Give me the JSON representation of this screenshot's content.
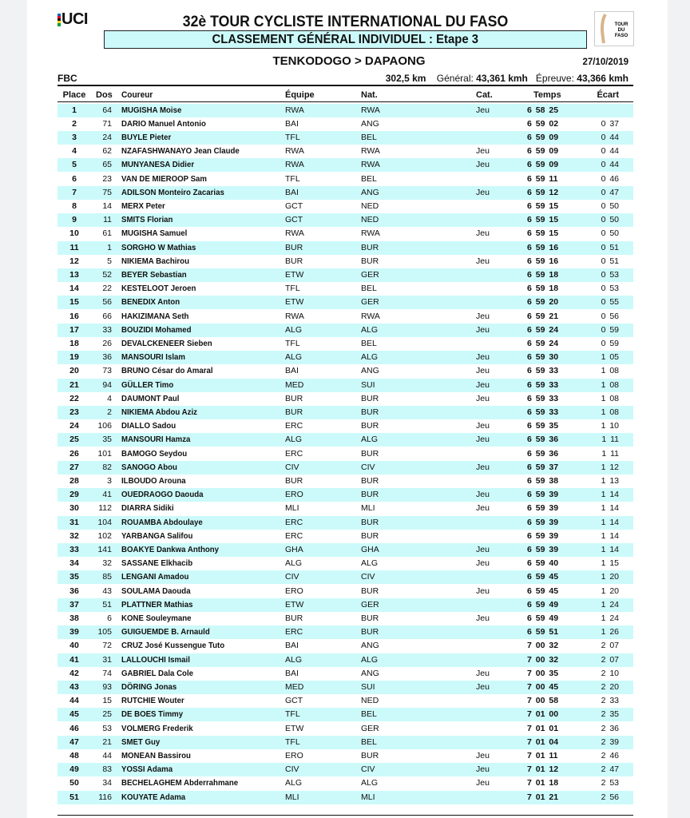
{
  "header": {
    "logo_text": "UCI",
    "title": "32è TOUR CYCLISTE INTERNATIONAL DU FASO",
    "subtitle": "CLASSEMENT GÉNÉRAL INDIVIDUEL  : Etape 3",
    "event_logo_text": "TOUR DU FASO",
    "stage": "TENKODOGO > DAPAONG",
    "date": "27/10/2019",
    "org": "FBC",
    "distance": "302,5 km",
    "general_label": "Général:",
    "general_speed": "43,361 kmh",
    "epreuve_label": "Épreuve:",
    "epreuve_speed": "43,366 kmh",
    "accent_color": "#ccfafa"
  },
  "columns": {
    "place": "Place",
    "dos": "Dos",
    "rider": "Coureur",
    "team": "Équipe",
    "nat": "Nat.",
    "cat": "Cat.",
    "time": "Temps",
    "gap": "Écart"
  },
  "rows": [
    [
      "1",
      "64",
      "MUGISHA  Moise",
      "RWA",
      "RWA",
      "Jeu",
      "6 58 25",
      ""
    ],
    [
      "2",
      "71",
      "DARIO Manuel Antonio",
      "BAI",
      "ANG",
      "",
      "6 59 02",
      "0 37"
    ],
    [
      "3",
      "24",
      "BUYLE Pieter",
      "TFL",
      "BEL",
      "",
      "6 59 09",
      "0 44"
    ],
    [
      "4",
      "62",
      "NZAFASHWANAYO Jean Claude",
      "RWA",
      "RWA",
      "Jeu",
      "6 59 09",
      "0 44"
    ],
    [
      "5",
      "65",
      "MUNYANESA  Didier",
      "RWA",
      "RWA",
      "Jeu",
      "6 59 09",
      "0 44"
    ],
    [
      "6",
      "23",
      "VAN DE MIEROOP Sam",
      "TFL",
      "BEL",
      "",
      "6 59 11",
      "0 46"
    ],
    [
      "7",
      "75",
      "ADILSON Monteiro Zacarias",
      "BAI",
      "ANG",
      "Jeu",
      "6 59 12",
      "0 47"
    ],
    [
      "8",
      "14",
      "MERX Peter",
      "GCT",
      "NED",
      "",
      "6 59 15",
      "0 50"
    ],
    [
      "9",
      "11",
      "SMITS Florian",
      "GCT",
      "NED",
      "",
      "6 59 15",
      "0 50"
    ],
    [
      "10",
      "61",
      "MUGISHA  Samuel",
      "RWA",
      "RWA",
      "Jeu",
      "6 59 15",
      "0 50"
    ],
    [
      "11",
      "1",
      "SORGHO  W Mathias",
      "BUR",
      "BUR",
      "",
      "6 59 16",
      "0 51"
    ],
    [
      "12",
      "5",
      "NIKIEMA  Bachirou",
      "BUR",
      "BUR",
      "Jeu",
      "6 59 16",
      "0 51"
    ],
    [
      "13",
      "52",
      "BEYER Sebastian",
      "ETW",
      "GER",
      "",
      "6 59 18",
      "0 53"
    ],
    [
      "14",
      "22",
      "KESTELOOT Jeroen",
      "TFL",
      "BEL",
      "",
      "6 59 18",
      "0 53"
    ],
    [
      "15",
      "56",
      "BENEDIX Anton",
      "ETW",
      "GER",
      "",
      "6 59 20",
      "0 55"
    ],
    [
      "16",
      "66",
      "HAKIZIMANA  Seth",
      "RWA",
      "RWA",
      "Jeu",
      "6 59 21",
      "0 56"
    ],
    [
      "17",
      "33",
      "BOUZIDI Mohamed",
      "ALG",
      "ALG",
      "Jeu",
      "6 59 24",
      "0 59"
    ],
    [
      "18",
      "26",
      "DEVALCKENEER Sieben",
      "TFL",
      "BEL",
      "",
      "6 59 24",
      "0 59"
    ],
    [
      "19",
      "36",
      "MANSOURI  Islam",
      "ALG",
      "ALG",
      "Jeu",
      "6 59 30",
      "1 05"
    ],
    [
      "20",
      "73",
      "BRUNO César do Amaral",
      "BAI",
      "ANG",
      "Jeu",
      "6 59 33",
      "1 08"
    ],
    [
      "21",
      "94",
      "GÜLLER  Timo",
      "MED",
      "SUI",
      "Jeu",
      "6 59 33",
      "1 08"
    ],
    [
      "22",
      "4",
      "DAUMONT  Paul",
      "BUR",
      "BUR",
      "Jeu",
      "6 59 33",
      "1 08"
    ],
    [
      "23",
      "2",
      "NIKIEMA Abdou Aziz",
      "BUR",
      "BUR",
      "",
      "6 59 33",
      "1 08"
    ],
    [
      "24",
      "106",
      "DIALLO Sadou",
      "ERC",
      "BUR",
      "Jeu",
      "6 59 35",
      "1 10"
    ],
    [
      "25",
      "35",
      "MANSOURI Hamza",
      "ALG",
      "ALG",
      "Jeu",
      "6 59 36",
      "1 11"
    ],
    [
      "26",
      "101",
      "BAMOGO Seydou",
      "ERC",
      "BUR",
      "",
      "6 59 36",
      "1 11"
    ],
    [
      "27",
      "82",
      "SANOGO Abou",
      "CIV",
      "CIV",
      "Jeu",
      "6 59 37",
      "1 12"
    ],
    [
      "28",
      "3",
      "ILBOUDO Arouna",
      "BUR",
      "BUR",
      "",
      "6 59 38",
      "1 13"
    ],
    [
      "29",
      "41",
      "OUEDRAOGO Daouda",
      "ERO",
      "BUR",
      "Jeu",
      "6 59 39",
      "1 14"
    ],
    [
      "30",
      "112",
      "DIARRA Sidiki",
      "MLI",
      "MLI",
      "Jeu",
      "6 59 39",
      "1 14"
    ],
    [
      "31",
      "104",
      "ROUAMBA Abdoulaye",
      "ERC",
      "BUR",
      "",
      "6 59 39",
      "1 14"
    ],
    [
      "32",
      "102",
      "YARBANGA Salifou",
      "ERC",
      "BUR",
      "",
      "6 59 39",
      "1 14"
    ],
    [
      "33",
      "141",
      "BOAKYE Dankwa Anthony",
      "GHA",
      "GHA",
      "Jeu",
      "6 59 39",
      "1 14"
    ],
    [
      "34",
      "32",
      "SASSANE Elkhacib",
      "ALG",
      "ALG",
      "Jeu",
      "6 59 40",
      "1 15"
    ],
    [
      "35",
      "85",
      "LENGANI Amadou",
      "CIV",
      "CIV",
      "",
      "6 59 45",
      "1 20"
    ],
    [
      "36",
      "43",
      "SOULAMA Daouda",
      "ERO",
      "BUR",
      "Jeu",
      "6 59 45",
      "1 20"
    ],
    [
      "37",
      "51",
      "PLATTNER Mathias",
      "ETW",
      "GER",
      "",
      "6 59 49",
      "1 24"
    ],
    [
      "38",
      "6",
      "KONE Souleymane",
      "BUR",
      "BUR",
      "Jeu",
      "6 59 49",
      "1 24"
    ],
    [
      "39",
      "105",
      "GUIGUEMDE B. Arnauld",
      "ERC",
      "BUR",
      "",
      "6 59 51",
      "1 26"
    ],
    [
      "40",
      "72",
      "CRUZ José Kussengue Tuto",
      "BAI",
      "ANG",
      "",
      "7 00 32",
      "2 07"
    ],
    [
      "41",
      "31",
      "LALLOUCHI Ismail",
      "ALG",
      "ALG",
      "",
      "7 00 32",
      "2 07"
    ],
    [
      "42",
      "74",
      "GABRIEL Dala Cole",
      "BAI",
      "ANG",
      "Jeu",
      "7 00 35",
      "2 10"
    ],
    [
      "43",
      "93",
      "DÖRING  Jonas",
      "MED",
      "SUI",
      "Jeu",
      "7 00 45",
      "2 20"
    ],
    [
      "44",
      "15",
      "RUTCHIE Wouter",
      "GCT",
      "NED",
      "",
      "7 00 58",
      "2 33"
    ],
    [
      "45",
      "25",
      "DE BOES Timmy",
      "TFL",
      "BEL",
      "",
      "7 01 00",
      "2 35"
    ],
    [
      "46",
      "53",
      "VOLMERG Frederik",
      "ETW",
      "GER",
      "",
      "7 01 01",
      "2 36"
    ],
    [
      "47",
      "21",
      "SMET Guy",
      "TFL",
      "BEL",
      "",
      "7 01 04",
      "2 39"
    ],
    [
      "48",
      "44",
      "MONEAN Bassirou",
      "ERO",
      "BUR",
      "Jeu",
      "7 01 11",
      "2 46"
    ],
    [
      "49",
      "83",
      "YOSSI  Adama",
      "CIV",
      "CIV",
      "Jeu",
      "7 01 12",
      "2 47"
    ],
    [
      "50",
      "34",
      "BECHELAGHEM Abderrahmane",
      "ALG",
      "ALG",
      "Jeu",
      "7 01 18",
      "2 53"
    ],
    [
      "51",
      "116",
      "KOUYATE Adama",
      "MLI",
      "MLI",
      "",
      "7 01 21",
      "2 56"
    ]
  ]
}
